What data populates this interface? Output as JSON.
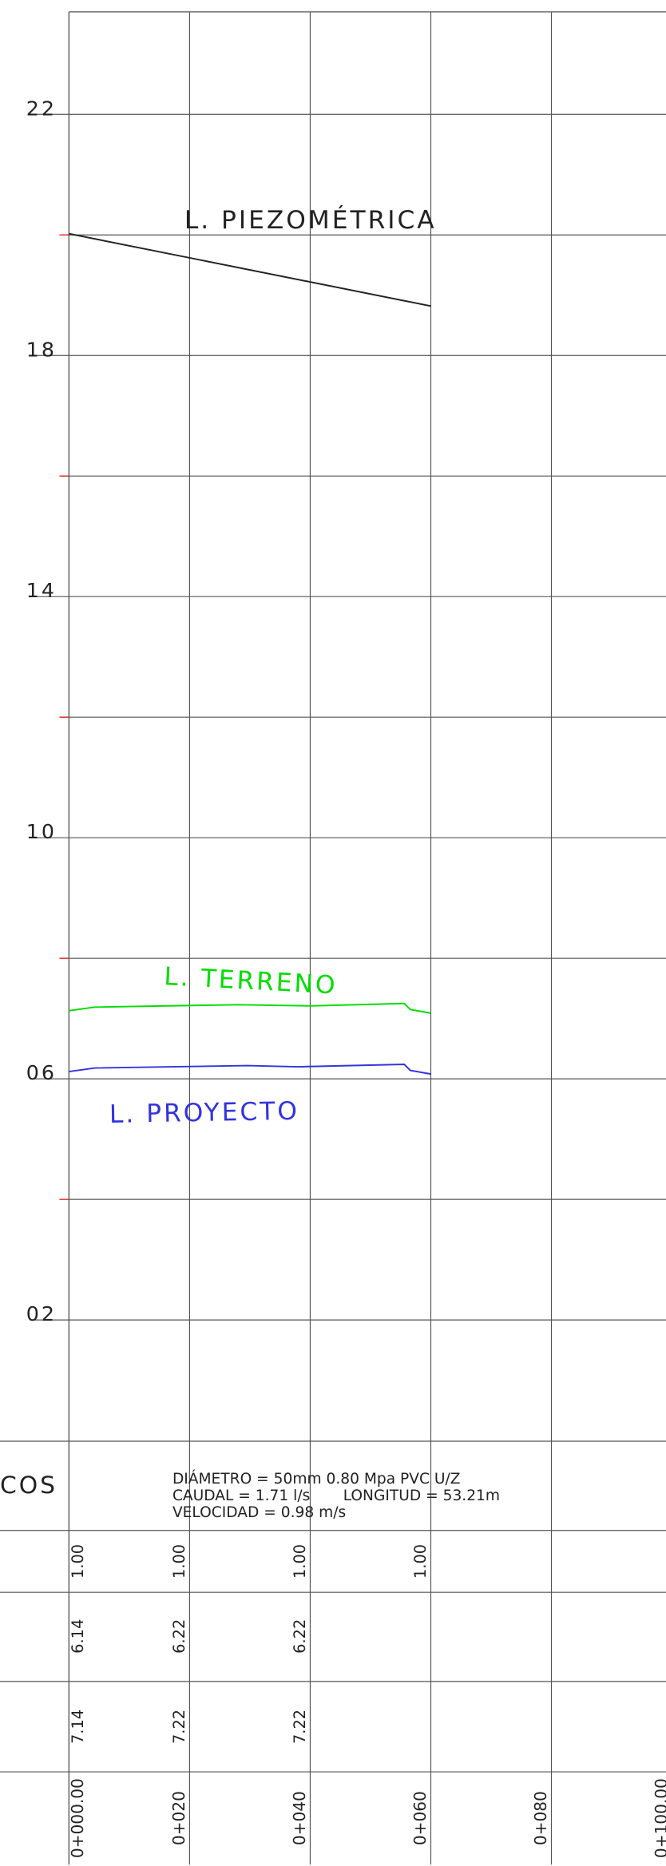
{
  "chart_data": {
    "type": "line",
    "xlim": [
      0,
      99
    ],
    "ylim": [
      0,
      23.7
    ],
    "xticks": [
      0,
      20,
      40,
      60,
      80
    ],
    "yticks": [
      {
        "value": 22,
        "label": "22"
      },
      {
        "value": 18,
        "label": "18"
      },
      {
        "value": 14,
        "label": "14"
      },
      {
        "value": 10,
        "label": "10"
      },
      {
        "value": 6,
        "label": "06"
      },
      {
        "value": 2,
        "label": "02"
      }
    ],
    "minor_yticks": [
      20,
      16,
      12,
      8,
      4
    ],
    "grid": true,
    "series": [
      {
        "name": "L. PIEZOMÉTRICA",
        "color": "#222222",
        "x": [
          0,
          60
        ],
        "values": [
          20.02,
          18.82
        ]
      },
      {
        "name": "L. TERRENO",
        "color": "#00dd00",
        "x": [
          0,
          4.3,
          28,
          40,
          55.6,
          56.6,
          60
        ],
        "values": [
          7.13,
          7.19,
          7.23,
          7.21,
          7.25,
          7.15,
          7.09
        ]
      },
      {
        "name": "L. PROYECTO",
        "color": "#3333dd",
        "x": [
          0,
          4.3,
          29.6,
          37.9,
          55.6,
          56.6,
          60
        ],
        "values": [
          6.12,
          6.18,
          6.22,
          6.2,
          6.24,
          6.14,
          6.08
        ]
      }
    ]
  },
  "table": {
    "label": "COS",
    "info": [
      "DIÁMETRO = 50mm 0.80 Mpa PVC U/Z",
      "CAUDAL = 1.71 l/s       LONGITUD = 53.21m",
      "VELOCIDAD = 0.98 m/s"
    ],
    "rows": [
      [
        "1.00",
        "1.00",
        "1.00",
        "1.00"
      ],
      [
        "6.14",
        "6.22",
        "6.22"
      ],
      [
        "7.14",
        "7.22",
        "7.22"
      ]
    ],
    "stations": [
      "0+000.00",
      "0+020",
      "0+040",
      "0+060",
      "0+080",
      "0+100.00"
    ]
  }
}
